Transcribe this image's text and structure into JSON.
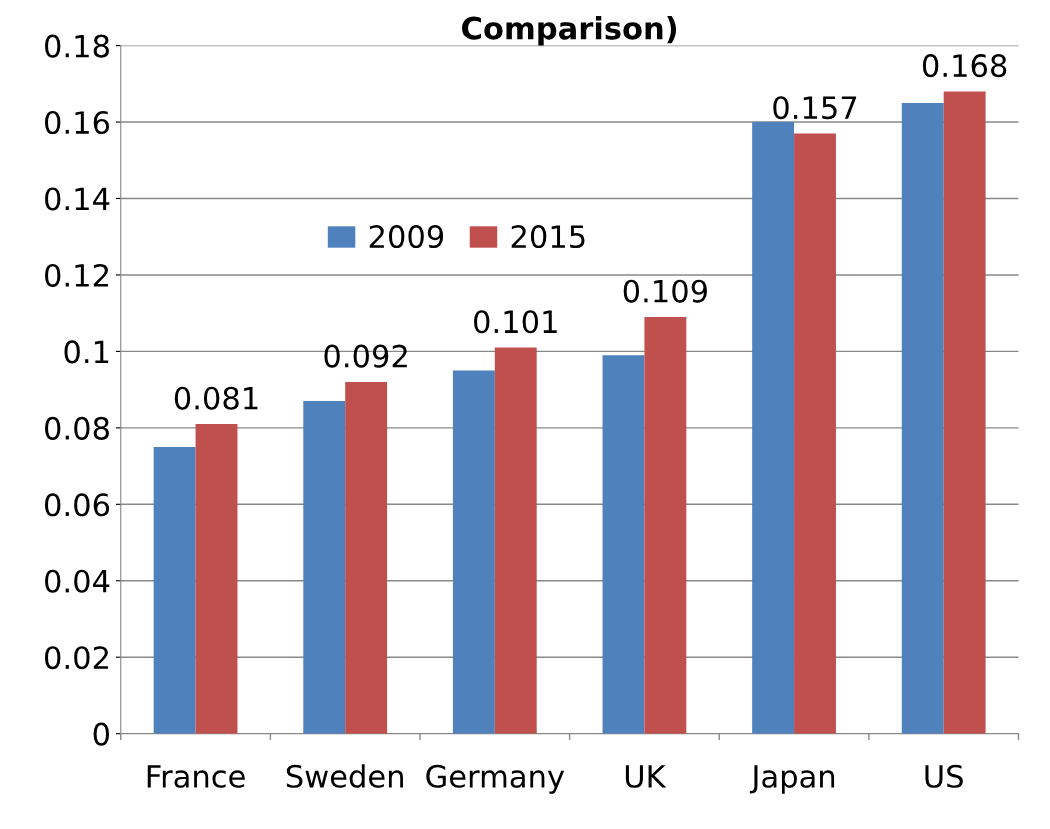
{
  "chart_data": {
    "type": "bar",
    "title": "Comparison)",
    "categories": [
      "France",
      "Sweden",
      "Germany",
      "UK",
      "Japan",
      "US"
    ],
    "series": [
      {
        "name": "2009",
        "color": "#4f81bd",
        "values": [
          0.075,
          0.087,
          0.095,
          0.099,
          0.16,
          0.165
        ]
      },
      {
        "name": "2015",
        "color": "#c0504d",
        "values": [
          0.081,
          0.092,
          0.101,
          0.109,
          0.157,
          0.168
        ],
        "value_labels": [
          "0.081",
          "0.092",
          "0.101",
          "0.109",
          "0.157",
          "0.168"
        ]
      }
    ],
    "ylim": [
      0,
      0.18
    ],
    "yticks": [
      {
        "value": 0,
        "label": "0"
      },
      0.02,
      0.04,
      0.06,
      0.08,
      {
        "value": 0.1,
        "label": "0.1"
      },
      0.12,
      0.14,
      0.16,
      0.18
    ],
    "grid": "y",
    "legend": "top left"
  }
}
